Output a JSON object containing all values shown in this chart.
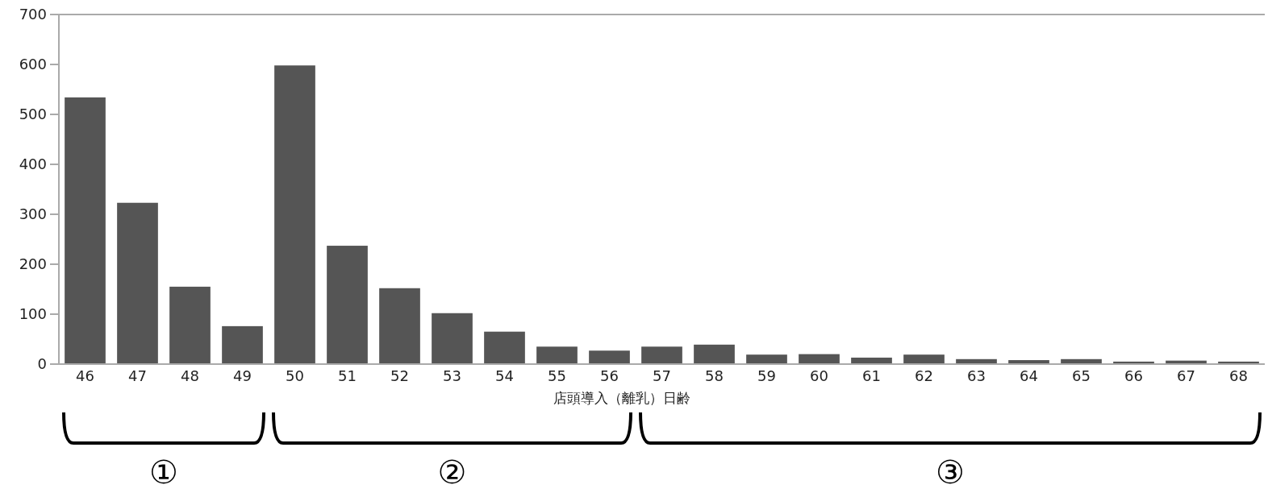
{
  "chart_data": {
    "type": "bar",
    "xlabel": "店頭導入（離乳）日齢",
    "categories": [
      "46",
      "47",
      "48",
      "49",
      "50",
      "51",
      "52",
      "53",
      "54",
      "55",
      "56",
      "57",
      "58",
      "59",
      "60",
      "61",
      "62",
      "63",
      "64",
      "65",
      "66",
      "67",
      "68"
    ],
    "values": [
      534,
      323,
      155,
      76,
      598,
      237,
      152,
      102,
      65,
      35,
      27,
      35,
      39,
      19,
      20,
      13,
      19,
      10,
      8,
      10,
      5,
      7,
      5
    ],
    "color": "#555555",
    "ylim": [
      0,
      700
    ],
    "yticks": [
      0,
      100,
      200,
      300,
      400,
      500,
      600,
      700
    ],
    "grid": false,
    "annotations": [
      "①",
      "②",
      "③"
    ]
  }
}
